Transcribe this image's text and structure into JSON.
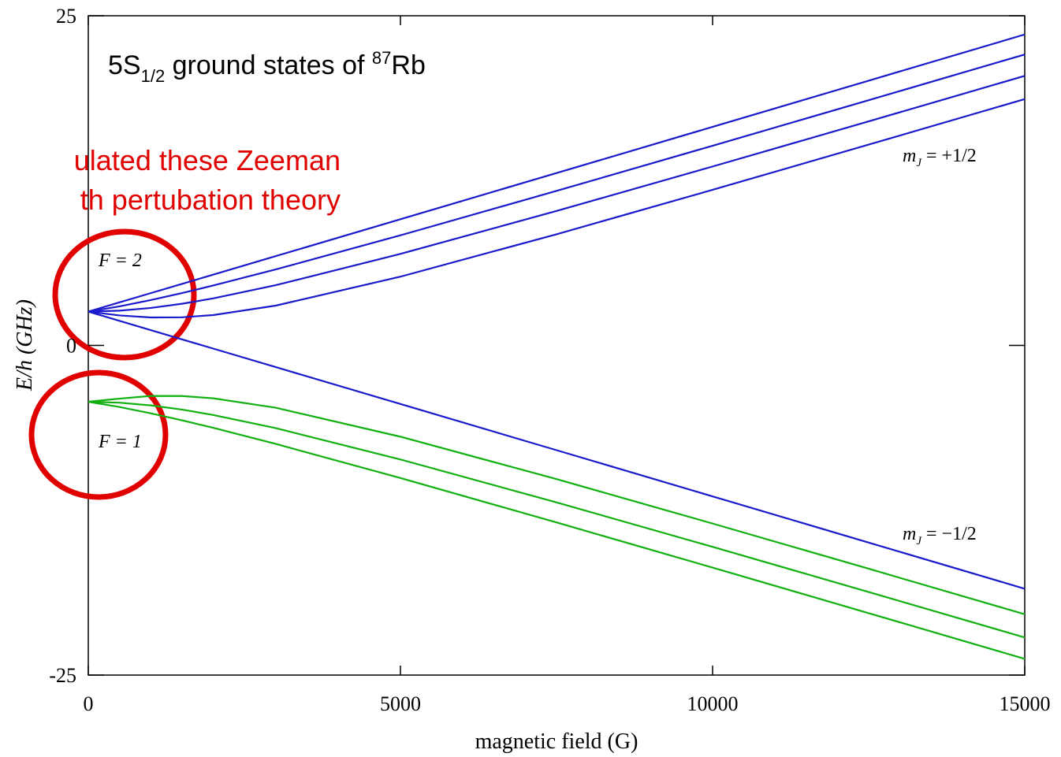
{
  "chart_data": {
    "type": "line",
    "title_parts": [
      "5S",
      "1/2",
      " ground states of ",
      "87",
      "Rb"
    ],
    "annotation_lines": [
      "ulated these Zeeman",
      "th pertubation theory"
    ],
    "x_label": "magnetic field (G)",
    "y_label": "E/h (GHz)",
    "x": [
      0,
      500,
      1000,
      1500,
      2000,
      3000,
      5000,
      7500,
      10000,
      12500,
      15000
    ],
    "series": [
      {
        "color": "#1a1acc",
        "values": [
          2.564,
          3.264,
          3.965,
          4.665,
          5.366,
          6.767,
          9.569,
          13.072,
          16.575,
          20.078,
          23.581
        ]
      },
      {
        "color": "#1a1acc",
        "values": [
          2.564,
          2.962,
          3.439,
          3.971,
          4.541,
          5.758,
          8.35,
          11.717,
          15.143,
          18.596,
          22.064
        ]
      },
      {
        "color": "#1a1acc",
        "values": [
          2.564,
          2.635,
          2.84,
          3.158,
          3.566,
          4.563,
          6.941,
          10.196,
          13.568,
          16.991,
          20.44
        ]
      },
      {
        "color": "#1a1acc",
        "values": [
          2.564,
          2.273,
          2.122,
          2.132,
          2.301,
          3.017,
          5.214,
          8.43,
          11.8,
          15.227,
          18.68
        ]
      },
      {
        "color": "#1a1acc",
        "values": [
          2.564,
          1.863,
          1.162,
          0.462,
          -0.239,
          -1.64,
          -4.442,
          -7.945,
          -11.448,
          -14.951,
          -18.454
        ]
      },
      {
        "color": "#11b011",
        "values": [
          -4.272,
          -4.036,
          -3.83,
          -3.84,
          -4.009,
          -4.725,
          -6.922,
          -10.138,
          -13.508,
          -16.935,
          -20.388
        ]
      },
      {
        "color": "#11b011",
        "values": [
          -4.272,
          -4.343,
          -4.548,
          -4.866,
          -5.274,
          -6.271,
          -8.649,
          -11.904,
          -15.276,
          -18.699,
          -22.148
        ]
      },
      {
        "color": "#11b011",
        "values": [
          -4.272,
          -4.67,
          -5.147,
          -5.679,
          -6.249,
          -7.466,
          -10.058,
          -13.425,
          -16.851,
          -20.304,
          -23.772
        ]
      }
    ],
    "level_labels": [
      "F = 2",
      "F = 1"
    ],
    "mj_labels": [
      [
        "m",
        "J",
        " = +1/2"
      ],
      [
        "m",
        "J",
        " = −1/2"
      ]
    ],
    "xlim": [
      0,
      15000
    ],
    "xticks": [
      0,
      5000,
      10000,
      15000
    ],
    "ylim": [
      -25,
      25
    ],
    "yticks": [
      -25,
      0,
      25
    ]
  }
}
